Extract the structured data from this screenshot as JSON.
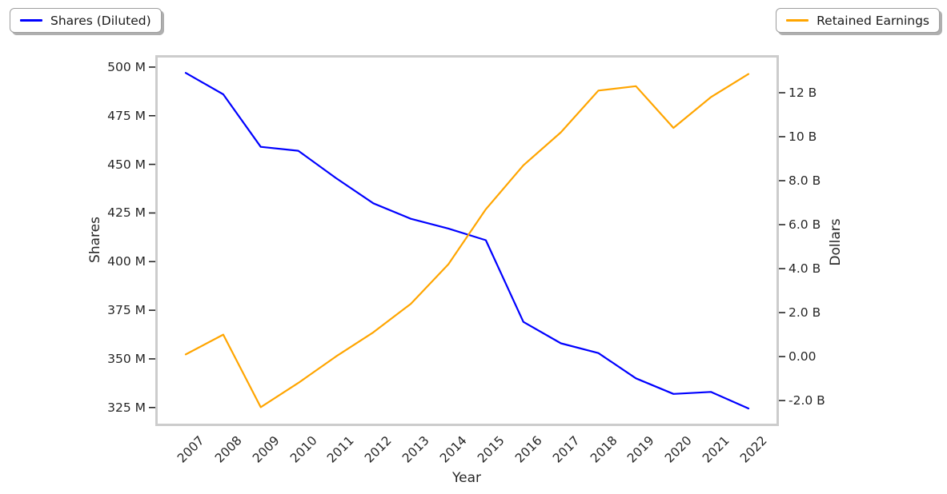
{
  "chart_data": {
    "type": "line",
    "x": [
      2007,
      2008,
      2009,
      2010,
      2011,
      2012,
      2013,
      2014,
      2015,
      2016,
      2017,
      2018,
      2019,
      2020,
      2021,
      2022
    ],
    "x_tick_labels": [
      "2007",
      "2008",
      "2009",
      "2010",
      "2011",
      "2012",
      "2013",
      "2014",
      "2015",
      "2016",
      "2017",
      "2018",
      "2019",
      "2020",
      "2021",
      "2022"
    ],
    "xlabel": "Year",
    "grid": false,
    "series": [
      {
        "name": "Shares (Diluted)",
        "axis": "left",
        "color": "#0000ff",
        "unit": "M shares",
        "values": [
          497,
          486,
          459,
          457,
          443,
          430,
          422,
          417,
          411,
          369,
          358,
          353,
          340,
          332,
          333,
          324.5
        ]
      },
      {
        "name": "Retained Earnings",
        "axis": "right",
        "color": "#ffa500",
        "unit": "B dollars",
        "values": [
          0.1,
          1.0,
          -2.3,
          -1.2,
          0.0,
          1.1,
          2.4,
          4.2,
          6.7,
          8.7,
          10.2,
          12.1,
          12.3,
          10.4,
          11.8,
          12.85
        ]
      }
    ],
    "left_axis": {
      "label": "Shares",
      "tick_values": [
        325,
        350,
        375,
        400,
        425,
        450,
        475,
        500
      ],
      "tick_labels": [
        "325 M",
        "350 M",
        "375 M",
        "400 M",
        "425 M",
        "450 M",
        "475 M",
        "500 M"
      ],
      "range": [
        316.7,
        504.9
      ]
    },
    "right_axis": {
      "label": "Dollars",
      "tick_values": [
        -2,
        0,
        2,
        4,
        6,
        8,
        10,
        12
      ],
      "tick_labels": [
        "-2.0 B",
        "0.00",
        "2.0 B",
        "4.0 B",
        "6.0 B",
        "8.0 B",
        "10 B",
        "12 B"
      ],
      "range": [
        -3.05,
        13.6
      ]
    },
    "legend": {
      "left_box": "Shares (Diluted)",
      "right_box": "Retained Earnings",
      "position": "outside-top-corners"
    }
  },
  "colors": {
    "shares_line": "#0000ff",
    "retained_line": "#ffa500",
    "spine": "#cccccc",
    "text": "#262626"
  }
}
